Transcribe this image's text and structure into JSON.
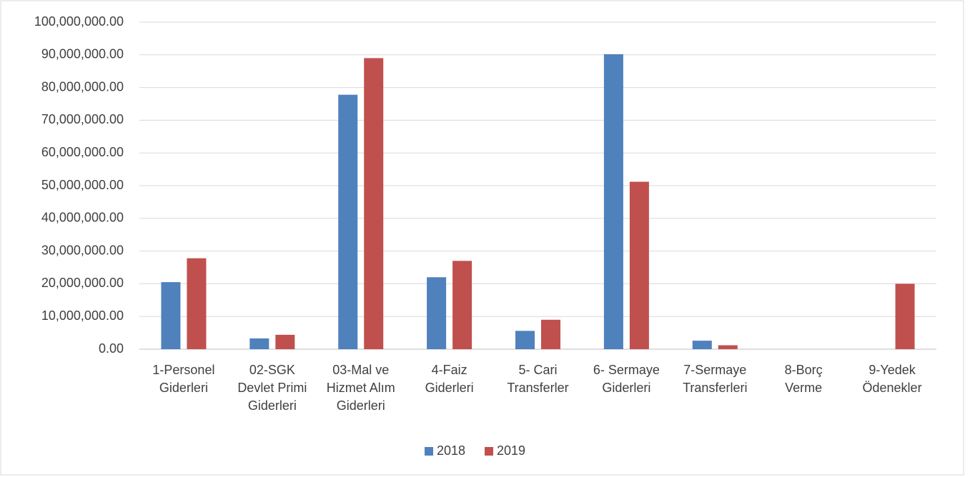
{
  "chart_data": {
    "type": "bar",
    "categories": [
      "1-Personel Giderleri",
      "02-SGK Devlet Primi Giderleri",
      "03-Mal ve Hizmet Alım Giderleri",
      "4-Faiz Giderleri",
      "5- Cari Transferler",
      "6- Sermaye Giderleri",
      "7-Sermaye Transferleri",
      "8-Borç Verme",
      "9-Yedek Ödenekler"
    ],
    "series": [
      {
        "name": "2018",
        "color": "#4f81bd",
        "values": [
          20500000,
          3300000,
          77800000,
          22000000,
          5600000,
          90200000,
          2600000,
          0,
          0
        ]
      },
      {
        "name": "2019",
        "color": "#c0504d",
        "values": [
          27800000,
          4400000,
          89000000,
          27000000,
          9000000,
          51200000,
          1200000,
          0,
          20000000
        ]
      }
    ],
    "ylim": [
      0,
      100000000
    ],
    "yticks": [
      {
        "value": 0,
        "label": "0.00"
      },
      {
        "value": 10000000,
        "label": "10,000,000.00"
      },
      {
        "value": 20000000,
        "label": "20,000,000.00"
      },
      {
        "value": 30000000,
        "label": "30,000,000.00"
      },
      {
        "value": 40000000,
        "label": "40,000,000.00"
      },
      {
        "value": 50000000,
        "label": "50,000,000.00"
      },
      {
        "value": 60000000,
        "label": "60,000,000.00"
      },
      {
        "value": 70000000,
        "label": "70,000,000.00"
      },
      {
        "value": 80000000,
        "label": "80,000,000.00"
      },
      {
        "value": 90000000,
        "label": "90,000,000.00"
      },
      {
        "value": 100000000,
        "label": "100,000,000.00"
      }
    ],
    "grid": true,
    "legend": "bottom"
  }
}
